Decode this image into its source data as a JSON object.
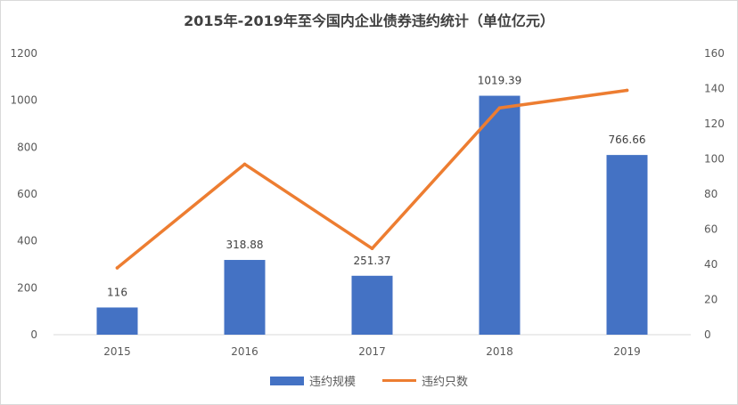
{
  "chart_data": {
    "type": "bar",
    "title": "2015年-2019年至今国内企业债券违约统计（单位亿元）",
    "categories": [
      "2015",
      "2016",
      "2017",
      "2018",
      "2019"
    ],
    "series": [
      {
        "name": "违约规模",
        "type": "bar",
        "axis": "left",
        "color": "#4472C4",
        "values": [
          116,
          318.88,
          251.37,
          1019.39,
          766.66
        ],
        "labels": [
          "116",
          "318.88",
          "251.37",
          "1019.39",
          "766.66"
        ]
      },
      {
        "name": "违约只数",
        "type": "line",
        "axis": "right",
        "color": "#ED7D31",
        "values": [
          38,
          97,
          49,
          129,
          139
        ]
      }
    ],
    "y_left": {
      "min": 0,
      "max": 1200,
      "step": 200
    },
    "y_right": {
      "min": 0,
      "max": 160,
      "step": 20
    },
    "grid": false,
    "legend": "bottom"
  }
}
